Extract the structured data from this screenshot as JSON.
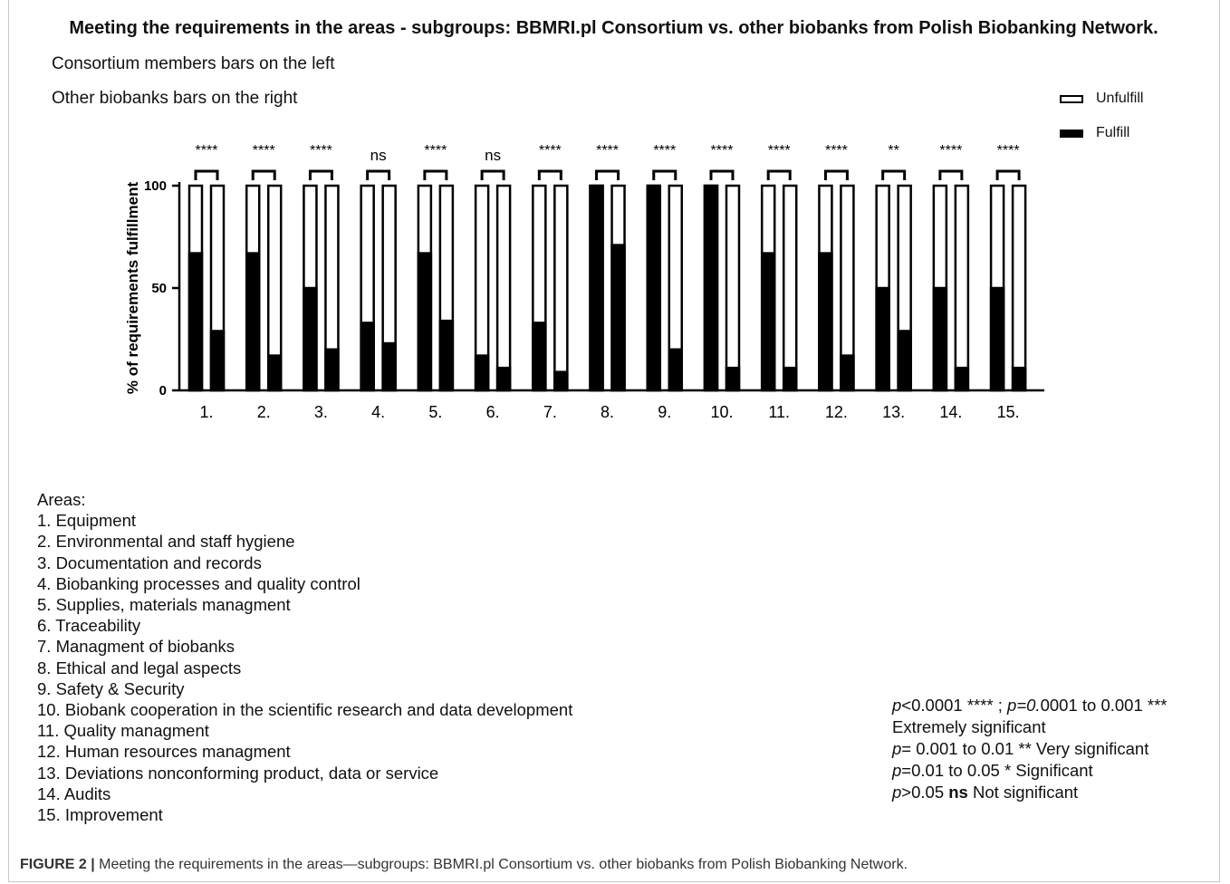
{
  "figure": {
    "notes": [
      "Consortium members bars on the left",
      "Other biobanks bars on the right"
    ],
    "areas_heading": "Areas:",
    "areas": [
      "1. Equipment",
      "2. Environmental and staff hygiene",
      "3. Documentation and records",
      "4. Biobanking processes and quality control",
      "5. Supplies, materials  managment",
      "6. Traceability",
      "7. Managment of biobanks",
      "8. Ethical and legal aspects",
      "9. Safety & Security",
      "10. Biobank cooperation in the scientific research and data development",
      "11. Quality managment",
      "12. Human resources managment",
      "13. Deviations nonconforming product, data or service",
      "14. Audits",
      "15. Improvement"
    ],
    "pvalue_notes": [
      {
        "p": "p",
        "text": "<0.0001 **** ; ",
        "p2": "p=0.",
        "text2": "0001 to 0.001 ***"
      },
      {
        "p": "",
        "text": "Extremely significant"
      },
      {
        "p": "p",
        "text": "= 0.001 to 0.01 ** Very significant"
      },
      {
        "p": "p",
        "text": "=0.01 to 0.05 * Significant"
      },
      {
        "p": "p",
        "text": ">0.05 ",
        "bold": "ns",
        "text2": " Not significant"
      }
    ],
    "caption_label": "FIGURE 2 |",
    "caption_text": " Meeting the requirements in the areas—subgroups: BBMRI.pl Consortium vs. other biobanks from Polish Biobanking Network."
  },
  "chart_data": {
    "type": "bar",
    "title": "Meeting the requirements in the areas - subgroups: BBMRI.pl Consortium vs. other biobanks from Polish Biobanking Network.",
    "ylabel": "% of requirements fulfillment",
    "xlabel": "",
    "ylim": [
      0,
      100
    ],
    "yticks": [
      0,
      50,
      100
    ],
    "stacked": true,
    "legend": {
      "position": "top-right",
      "entries": [
        "Unfulfill",
        "Fulfill"
      ]
    },
    "categories": [
      "1.",
      "2.",
      "3.",
      "4.",
      "5.",
      "6.",
      "7.",
      "8.",
      "9.",
      "10.",
      "11.",
      "12.",
      "13.",
      "14.",
      "15."
    ],
    "series": [
      {
        "name": "Fulfill",
        "group": "Consortium members",
        "values": [
          67,
          67,
          50,
          33,
          67,
          17,
          33,
          100,
          100,
          100,
          67,
          67,
          50,
          50,
          50
        ]
      },
      {
        "name": "Unfulfill",
        "group": "Consortium members",
        "values": [
          33,
          33,
          50,
          67,
          33,
          83,
          67,
          0,
          0,
          0,
          33,
          33,
          50,
          50,
          50
        ]
      },
      {
        "name": "Fulfill",
        "group": "Other biobanks",
        "values": [
          29,
          17,
          20,
          23,
          34,
          11,
          9,
          71,
          20,
          11,
          11,
          17,
          29,
          11,
          11
        ]
      },
      {
        "name": "Unfulfill",
        "group": "Other biobanks",
        "values": [
          71,
          83,
          80,
          77,
          66,
          89,
          91,
          29,
          80,
          89,
          89,
          83,
          71,
          89,
          89
        ]
      }
    ],
    "significance": [
      "****",
      "****",
      "****",
      "ns",
      "****",
      "ns",
      "****",
      "****",
      "****",
      "****",
      "****",
      "****",
      "**",
      "****",
      "****"
    ],
    "colors": {
      "fulfill": "#000000",
      "unfulfill": "#ffffff",
      "outline": "#000000"
    }
  }
}
